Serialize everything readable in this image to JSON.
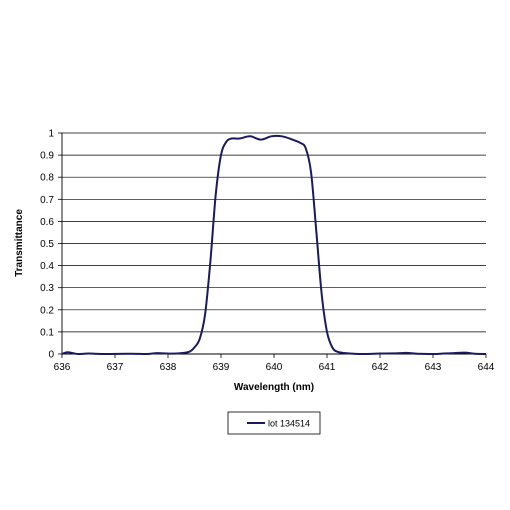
{
  "chart_data": {
    "type": "line",
    "xlabel": "Wavelength (nm)",
    "ylabel": "Transmittance",
    "xlim": [
      636,
      644
    ],
    "ylim": [
      0,
      1
    ],
    "x_ticks": [
      "636",
      "637",
      "638",
      "639",
      "640",
      "641",
      "642",
      "643",
      "644"
    ],
    "y_ticks": [
      "0",
      "0.1",
      "0.2",
      "0.3",
      "0.4",
      "0.5",
      "0.6",
      "0.7",
      "0.8",
      "0.9",
      "1"
    ],
    "grid": "horizontal",
    "legend_position": "bottom-center",
    "series": [
      {
        "name": "lot 134514",
        "color": "#1a1a5e",
        "points": [
          [
            636.0,
            0.0
          ],
          [
            636.1,
            0.008
          ],
          [
            636.2,
            0.004
          ],
          [
            636.3,
            0.0
          ],
          [
            636.5,
            0.002
          ],
          [
            636.8,
            0.0
          ],
          [
            637.3,
            0.001
          ],
          [
            637.6,
            0.0
          ],
          [
            637.8,
            0.004
          ],
          [
            638.0,
            0.002
          ],
          [
            638.2,
            0.003
          ],
          [
            638.4,
            0.01
          ],
          [
            638.5,
            0.03
          ],
          [
            638.6,
            0.07
          ],
          [
            638.7,
            0.18
          ],
          [
            638.8,
            0.42
          ],
          [
            638.9,
            0.72
          ],
          [
            639.0,
            0.9
          ],
          [
            639.1,
            0.96
          ],
          [
            639.2,
            0.975
          ],
          [
            639.35,
            0.975
          ],
          [
            639.55,
            0.985
          ],
          [
            639.75,
            0.97
          ],
          [
            639.95,
            0.985
          ],
          [
            640.15,
            0.985
          ],
          [
            640.35,
            0.97
          ],
          [
            640.5,
            0.955
          ],
          [
            640.6,
            0.93
          ],
          [
            640.7,
            0.82
          ],
          [
            640.8,
            0.55
          ],
          [
            640.9,
            0.27
          ],
          [
            641.0,
            0.1
          ],
          [
            641.1,
            0.03
          ],
          [
            641.2,
            0.01
          ],
          [
            641.4,
            0.003
          ],
          [
            641.7,
            0.0
          ],
          [
            642.0,
            0.002
          ],
          [
            642.3,
            0.003
          ],
          [
            642.5,
            0.005
          ],
          [
            642.7,
            0.001
          ],
          [
            643.0,
            0.0
          ],
          [
            643.2,
            0.002
          ],
          [
            643.4,
            0.004
          ],
          [
            643.6,
            0.006
          ],
          [
            643.8,
            0.001
          ],
          [
            644.0,
            0.0
          ]
        ]
      }
    ]
  }
}
